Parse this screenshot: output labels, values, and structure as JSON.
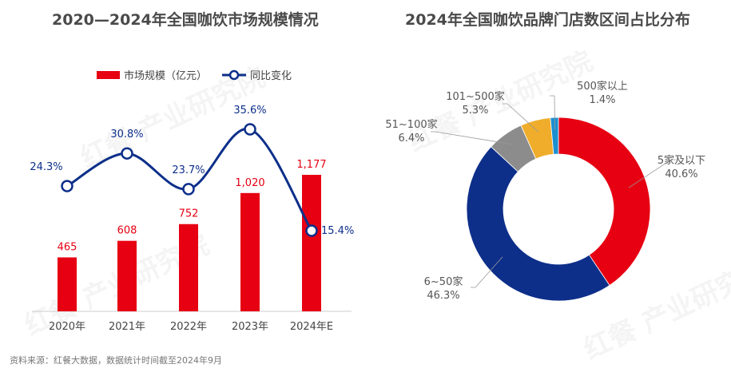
{
  "left_title": "2020—2024年全国咖饮市场规模情况",
  "right_title": "2024年全国咖饮品牌门店数区间占比分布",
  "source": "资料来源：红餐大数据，数据统计时间截至2024年9月",
  "watermark": "红餐 产业研究院",
  "chart_data": [
    {
      "type": "bar",
      "title": "2020—2024年全国咖饮市场规模情况",
      "categories": [
        "2020年",
        "2021年",
        "2022年",
        "2023年",
        "2024年E"
      ],
      "legend_position": "top",
      "series": [
        {
          "name": "市场规模（亿元）",
          "type": "bar",
          "values": [
            465,
            608,
            752,
            1020,
            1177
          ],
          "labels": [
            "465",
            "608",
            "752",
            "1,020",
            "1,177"
          ],
          "color": "#e60012"
        },
        {
          "name": "同比变化",
          "type": "line",
          "values": [
            24.3,
            30.8,
            23.7,
            35.6,
            15.4
          ],
          "labels": [
            "24.3%",
            "30.8%",
            "23.7%",
            "35.6%",
            "15.4%"
          ],
          "color": "#0d2f8a"
        }
      ]
    },
    {
      "type": "pie",
      "title": "2024年全国咖饮品牌门店数区间占比分布",
      "donut": true,
      "slices": [
        {
          "label": "5家及以下",
          "value": 40.6,
          "text": "40.6%",
          "color": "#e60012"
        },
        {
          "label": "6~50家",
          "value": 46.3,
          "text": "46.3%",
          "color": "#0d2f8a"
        },
        {
          "label": "51~100家",
          "value": 6.4,
          "text": "6.4%",
          "color": "#8c8c8c"
        },
        {
          "label": "101~500家",
          "value": 5.3,
          "text": "5.3%",
          "color": "#f0ad2b"
        },
        {
          "label": "500家以上",
          "value": 1.4,
          "text": "1.4%",
          "color": "#1b8fd0"
        }
      ]
    }
  ]
}
